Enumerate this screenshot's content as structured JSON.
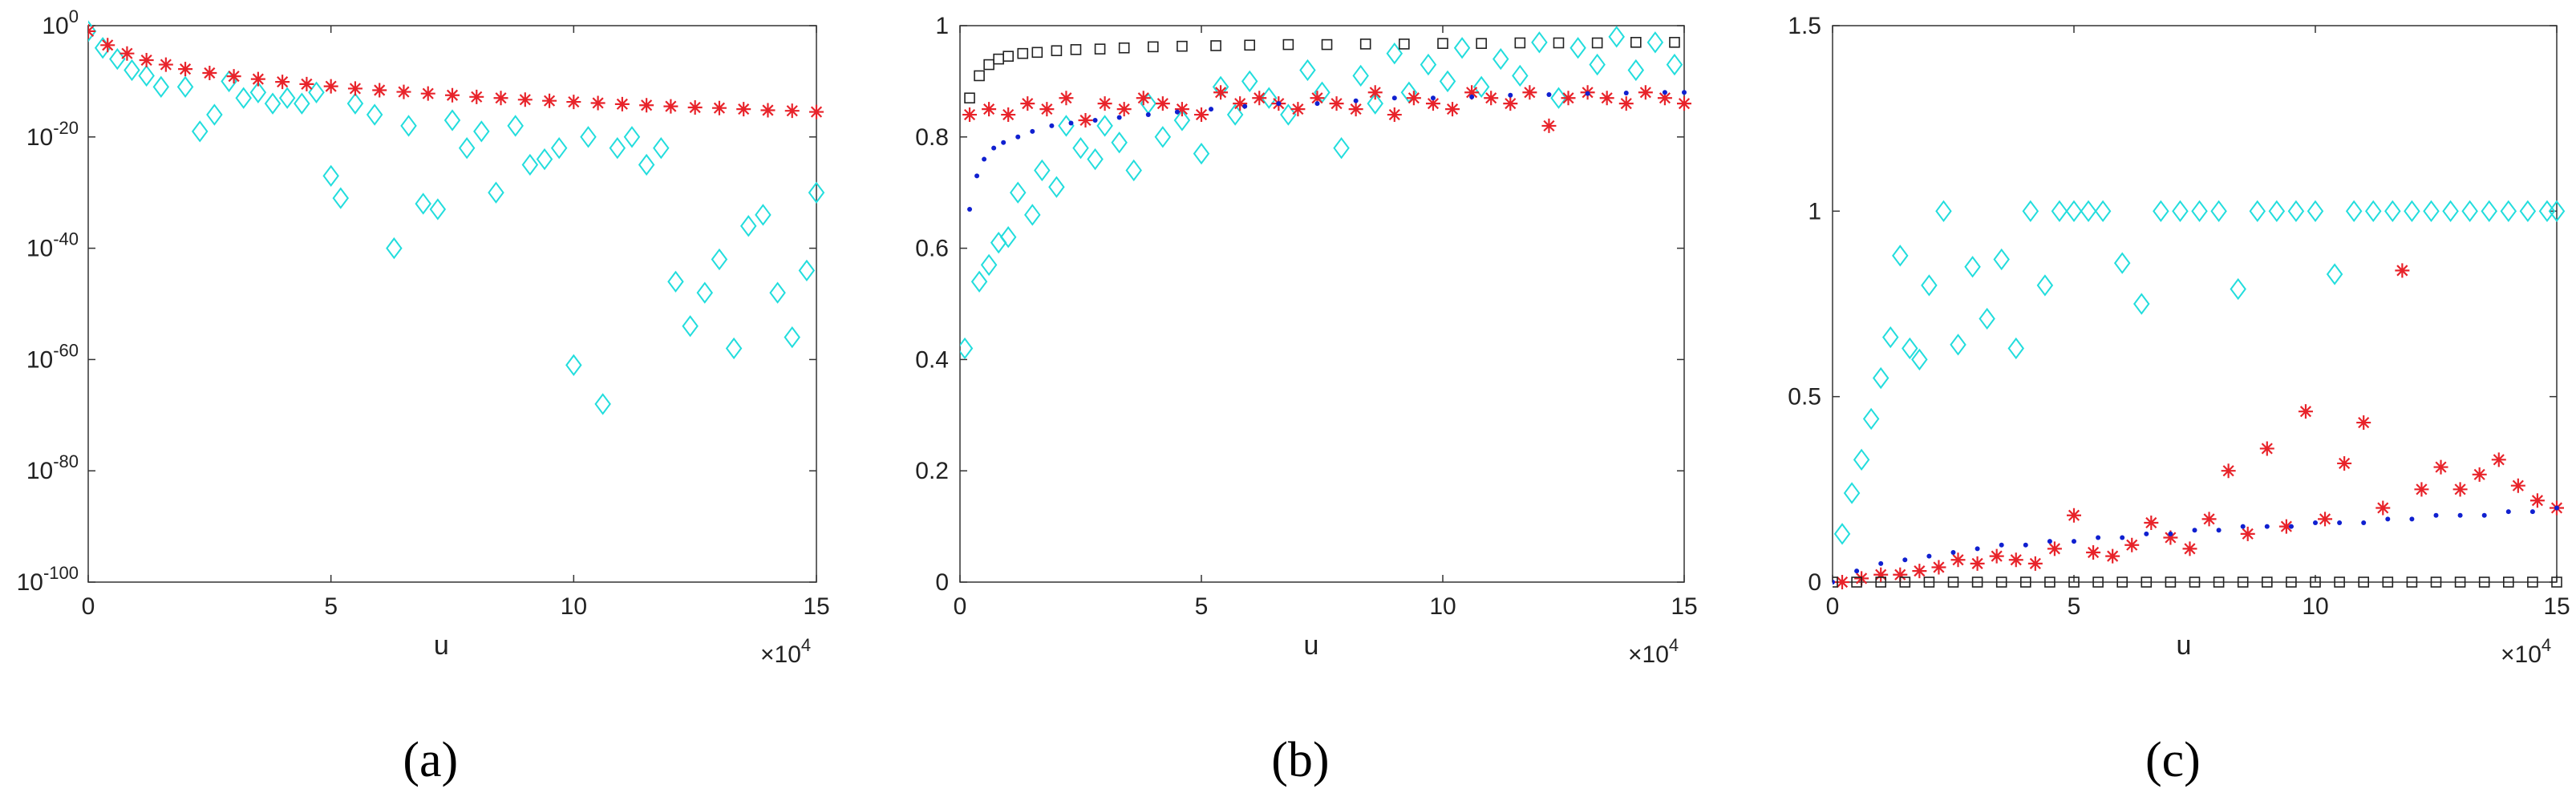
{
  "figure": {
    "colors": {
      "cyan": "#22dddd",
      "red": "#e8232a",
      "blue": "#1020d0",
      "black": "#222222"
    },
    "markers": {
      "diamond": "diamond",
      "star": "asterisk",
      "dot": "dot",
      "square": "square"
    }
  },
  "chart_data": [
    {
      "id": "a",
      "type": "scatter",
      "scale_y": "log",
      "caption": "(a)",
      "xlabel": "u",
      "x_multiplier_text": "×10",
      "x_multiplier_exp": "4",
      "xlim": [
        0,
        15
      ],
      "ylim_exp": [
        -100,
        0
      ],
      "x_ticks": [
        0,
        5,
        10,
        15
      ],
      "x_tick_labels": [
        "0",
        "5",
        "10",
        "15"
      ],
      "y_ticks_exp": [
        0,
        -20,
        -40,
        -60,
        -80,
        -100
      ],
      "y_tick_labels": [
        {
          "base": "10",
          "exp": "0"
        },
        {
          "base": "10",
          "exp": "-20"
        },
        {
          "base": "10",
          "exp": "-40"
        },
        {
          "base": "10",
          "exp": "-60"
        },
        {
          "base": "10",
          "exp": "-80"
        },
        {
          "base": "10",
          "exp": "-100"
        }
      ],
      "series": [
        {
          "name": "cyan-diamond",
          "marker": "diamond",
          "color": "cyan",
          "x": [
            0.0,
            0.3,
            0.6,
            0.9,
            1.2,
            1.5,
            2.0,
            2.3,
            2.6,
            2.9,
            3.2,
            3.5,
            3.8,
            4.1,
            4.4,
            4.7,
            5.0,
            5.2,
            5.5,
            5.9,
            6.3,
            6.6,
            6.9,
            7.2,
            7.5,
            7.8,
            8.1,
            8.4,
            8.8,
            9.1,
            9.4,
            9.7,
            10.0,
            10.3,
            10.6,
            10.9,
            11.2,
            11.5,
            11.8,
            12.1,
            12.4,
            12.7,
            13.0,
            13.3,
            13.6,
            13.9,
            14.2,
            14.5,
            14.8,
            15.0
          ],
          "y_exp": [
            -1,
            -4,
            -6,
            -8,
            -9,
            -11,
            -11,
            -19,
            -16,
            -10,
            -13,
            -12,
            -14,
            -13,
            -14,
            -12,
            -27,
            -31,
            -14,
            -16,
            -40,
            -18,
            -32,
            -33,
            -17,
            -22,
            -19,
            -30,
            -18,
            -25,
            -24,
            -22,
            -61,
            -20,
            -68,
            -22,
            -20,
            -25,
            -22,
            -46,
            -54,
            -48,
            -42,
            -58,
            -36,
            -34,
            -48,
            -56,
            -44,
            -30
          ]
        },
        {
          "name": "red-star",
          "marker": "star",
          "color": "red",
          "x": [
            0.0,
            0.4,
            0.8,
            1.2,
            1.6,
            2.0,
            2.5,
            3.0,
            3.5,
            4.0,
            4.5,
            5.0,
            5.5,
            6.0,
            6.5,
            7.0,
            7.5,
            8.0,
            8.5,
            9.0,
            9.5,
            10.0,
            10.5,
            11.0,
            11.5,
            12.0,
            12.5,
            13.0,
            13.5,
            14.0,
            14.5,
            15.0
          ],
          "y_exp": [
            -1,
            -3.5,
            -5,
            -6.2,
            -7,
            -7.8,
            -8.5,
            -9.1,
            -9.6,
            -10.1,
            -10.5,
            -10.9,
            -11.3,
            -11.6,
            -11.9,
            -12.2,
            -12.5,
            -12.8,
            -13.0,
            -13.3,
            -13.5,
            -13.7,
            -13.9,
            -14.1,
            -14.3,
            -14.5,
            -14.7,
            -14.8,
            -15.0,
            -15.2,
            -15.3,
            -15.5
          ]
        }
      ]
    },
    {
      "id": "b",
      "type": "scatter",
      "caption": "(b)",
      "xlabel": "u",
      "x_multiplier_text": "×10",
      "x_multiplier_exp": "4",
      "xlim": [
        0,
        15
      ],
      "ylim": [
        0,
        1
      ],
      "x_ticks": [
        0,
        5,
        10,
        15
      ],
      "x_tick_labels": [
        "0",
        "5",
        "10",
        "15"
      ],
      "y_ticks": [
        0,
        0.2,
        0.4,
        0.6,
        0.8,
        1
      ],
      "y_tick_labels": [
        "0",
        "0.2",
        "0.4",
        "0.6",
        "0.8",
        "1"
      ],
      "series": [
        {
          "name": "cyan-diamond",
          "marker": "diamond",
          "color": "cyan",
          "x": [
            0.1,
            0.4,
            0.6,
            0.8,
            1.0,
            1.2,
            1.5,
            1.7,
            2.0,
            2.2,
            2.5,
            2.8,
            3.0,
            3.3,
            3.6,
            3.9,
            4.2,
            4.6,
            5.0,
            5.4,
            5.7,
            6.0,
            6.4,
            6.8,
            7.2,
            7.5,
            7.9,
            8.3,
            8.6,
            9.0,
            9.3,
            9.7,
            10.1,
            10.4,
            10.8,
            11.2,
            11.6,
            12.0,
            12.4,
            12.8,
            13.2,
            13.6,
            14.0,
            14.4,
            14.8
          ],
          "y": [
            0.42,
            0.54,
            0.57,
            0.61,
            0.62,
            0.7,
            0.66,
            0.74,
            0.71,
            0.82,
            0.78,
            0.76,
            0.82,
            0.79,
            0.74,
            0.86,
            0.8,
            0.83,
            0.77,
            0.89,
            0.84,
            0.9,
            0.87,
            0.84,
            0.92,
            0.88,
            0.78,
            0.91,
            0.86,
            0.95,
            0.88,
            0.93,
            0.9,
            0.96,
            0.89,
            0.94,
            0.91,
            0.97,
            0.87,
            0.96,
            0.93,
            0.98,
            0.92,
            0.97,
            0.93
          ]
        },
        {
          "name": "red-star",
          "marker": "star",
          "color": "red",
          "x": [
            0.2,
            0.6,
            1.0,
            1.4,
            1.8,
            2.2,
            2.6,
            3.0,
            3.4,
            3.8,
            4.2,
            4.6,
            5.0,
            5.4,
            5.8,
            6.2,
            6.6,
            7.0,
            7.4,
            7.8,
            8.2,
            8.6,
            9.0,
            9.4,
            9.8,
            10.2,
            10.6,
            11.0,
            11.4,
            11.8,
            12.2,
            12.6,
            13.0,
            13.4,
            13.8,
            14.2,
            14.6,
            15.0
          ],
          "y": [
            0.84,
            0.85,
            0.84,
            0.86,
            0.85,
            0.87,
            0.83,
            0.86,
            0.85,
            0.87,
            0.86,
            0.85,
            0.84,
            0.88,
            0.86,
            0.87,
            0.86,
            0.85,
            0.87,
            0.86,
            0.85,
            0.88,
            0.84,
            0.87,
            0.86,
            0.85,
            0.88,
            0.87,
            0.86,
            0.88,
            0.82,
            0.87,
            0.88,
            0.87,
            0.86,
            0.88,
            0.87,
            0.86
          ]
        },
        {
          "name": "blue-dot",
          "marker": "dot",
          "color": "blue",
          "x": [
            0.2,
            0.35,
            0.5,
            0.7,
            0.9,
            1.2,
            1.5,
            1.9,
            2.3,
            2.8,
            3.3,
            3.9,
            4.5,
            5.2,
            5.9,
            6.6,
            7.4,
            8.2,
            9.0,
            9.8,
            10.6,
            11.4,
            12.2,
            13.0,
            13.8,
            14.6,
            15.0
          ],
          "y": [
            0.67,
            0.73,
            0.76,
            0.78,
            0.79,
            0.8,
            0.81,
            0.82,
            0.825,
            0.83,
            0.835,
            0.84,
            0.845,
            0.85,
            0.855,
            0.86,
            0.86,
            0.865,
            0.87,
            0.87,
            0.872,
            0.875,
            0.876,
            0.878,
            0.879,
            0.88,
            0.88
          ]
        },
        {
          "name": "black-square",
          "marker": "square",
          "color": "black",
          "x": [
            0.2,
            0.4,
            0.6,
            0.8,
            1.0,
            1.3,
            1.6,
            2.0,
            2.4,
            2.9,
            3.4,
            4.0,
            4.6,
            5.3,
            6.0,
            6.8,
            7.6,
            8.4,
            9.2,
            10.0,
            10.8,
            11.6,
            12.4,
            13.2,
            14.0,
            14.8
          ],
          "y": [
            0.87,
            0.91,
            0.93,
            0.94,
            0.945,
            0.95,
            0.952,
            0.955,
            0.957,
            0.958,
            0.96,
            0.962,
            0.963,
            0.964,
            0.965,
            0.966,
            0.966,
            0.967,
            0.967,
            0.968,
            0.968,
            0.969,
            0.969,
            0.969,
            0.97,
            0.97
          ]
        }
      ]
    },
    {
      "id": "c",
      "type": "scatter",
      "caption": "(c)",
      "xlabel": "u",
      "x_multiplier_text": "×10",
      "x_multiplier_exp": "4",
      "xlim": [
        0,
        15
      ],
      "ylim": [
        0,
        1.5
      ],
      "x_ticks": [
        0,
        5,
        10,
        15
      ],
      "x_tick_labels": [
        "0",
        "5",
        "10",
        "15"
      ],
      "y_ticks": [
        0,
        0.5,
        1,
        1.5
      ],
      "y_tick_labels": [
        "0",
        "0.5",
        "1",
        "1.5"
      ],
      "series": [
        {
          "name": "cyan-diamond",
          "marker": "diamond",
          "color": "cyan",
          "x": [
            0.2,
            0.4,
            0.6,
            0.8,
            1.0,
            1.2,
            1.4,
            1.6,
            1.8,
            2.0,
            2.3,
            2.6,
            2.9,
            3.2,
            3.5,
            3.8,
            4.1,
            4.4,
            4.7,
            5.0,
            5.3,
            5.6,
            6.0,
            6.4,
            6.8,
            7.2,
            7.6,
            8.0,
            8.4,
            8.8,
            9.2,
            9.6,
            10.0,
            10.4,
            10.8,
            11.2,
            11.6,
            12.0,
            12.4,
            12.8,
            13.2,
            13.6,
            14.0,
            14.4,
            14.8,
            15.0
          ],
          "y": [
            0.13,
            0.24,
            0.33,
            0.44,
            0.55,
            0.66,
            0.88,
            0.63,
            0.6,
            0.8,
            1.0,
            0.64,
            0.85,
            0.71,
            0.87,
            0.63,
            1.0,
            0.8,
            1.0,
            1.0,
            1.0,
            1.0,
            0.86,
            0.75,
            1.0,
            1.0,
            1.0,
            1.0,
            0.79,
            1.0,
            1.0,
            1.0,
            1.0,
            0.83,
            1.0,
            1.0,
            1.0,
            1.0,
            1.0,
            1.0,
            1.0,
            1.0,
            1.0,
            1.0,
            1.0,
            1.0
          ]
        },
        {
          "name": "red-star",
          "marker": "star",
          "color": "red",
          "x": [
            0.2,
            0.6,
            1.0,
            1.4,
            1.8,
            2.2,
            2.6,
            3.0,
            3.4,
            3.8,
            4.2,
            4.6,
            5.0,
            5.4,
            5.8,
            6.2,
            6.6,
            7.0,
            7.4,
            7.8,
            8.2,
            8.6,
            9.0,
            9.4,
            9.8,
            10.2,
            10.6,
            11.0,
            11.4,
            11.8,
            12.2,
            12.6,
            13.0,
            13.4,
            13.8,
            14.2,
            14.6,
            15.0
          ],
          "y": [
            0.0,
            0.01,
            0.02,
            0.02,
            0.03,
            0.04,
            0.06,
            0.05,
            0.07,
            0.06,
            0.05,
            0.09,
            0.18,
            0.08,
            0.07,
            0.1,
            0.16,
            0.12,
            0.09,
            0.17,
            0.3,
            0.13,
            0.36,
            0.15,
            0.46,
            0.17,
            0.32,
            0.43,
            0.2,
            0.84,
            0.25,
            0.31,
            0.25,
            0.29,
            0.33,
            0.26,
            0.22,
            0.2
          ]
        },
        {
          "name": "blue-dot",
          "marker": "dot",
          "color": "blue",
          "x": [
            0.0,
            0.5,
            1.0,
            1.5,
            2.0,
            2.5,
            3.0,
            3.5,
            4.0,
            4.5,
            5.0,
            5.5,
            6.0,
            6.5,
            7.0,
            7.5,
            8.0,
            8.5,
            9.0,
            9.5,
            10.0,
            10.5,
            11.0,
            11.5,
            12.0,
            12.5,
            13.0,
            13.5,
            14.0,
            14.5,
            15.0
          ],
          "y": [
            0.0,
            0.03,
            0.05,
            0.06,
            0.07,
            0.08,
            0.09,
            0.1,
            0.1,
            0.11,
            0.11,
            0.12,
            0.12,
            0.13,
            0.13,
            0.14,
            0.14,
            0.15,
            0.15,
            0.15,
            0.16,
            0.16,
            0.16,
            0.17,
            0.17,
            0.18,
            0.18,
            0.18,
            0.19,
            0.19,
            0.2
          ]
        },
        {
          "name": "black-square",
          "marker": "square",
          "color": "black",
          "x": [
            0.0,
            0.5,
            1.0,
            1.5,
            2.0,
            2.5,
            3.0,
            3.5,
            4.0,
            4.5,
            5.0,
            5.5,
            6.0,
            6.5,
            7.0,
            7.5,
            8.0,
            8.5,
            9.0,
            9.5,
            10.0,
            10.5,
            11.0,
            11.5,
            12.0,
            12.5,
            13.0,
            13.5,
            14.0,
            14.5,
            15.0
          ],
          "y": [
            0.0,
            0.0,
            0.0,
            0.0,
            0.0,
            0.0,
            0.0,
            0.0,
            0.0,
            0.0,
            0.0,
            0.0,
            0.0,
            0.0,
            0.0,
            0.0,
            0.0,
            0.0,
            0.0,
            0.0,
            0.0,
            0.0,
            0.0,
            0.0,
            0.0,
            0.0,
            0.0,
            0.0,
            0.0,
            0.0,
            0.0
          ]
        }
      ]
    }
  ]
}
